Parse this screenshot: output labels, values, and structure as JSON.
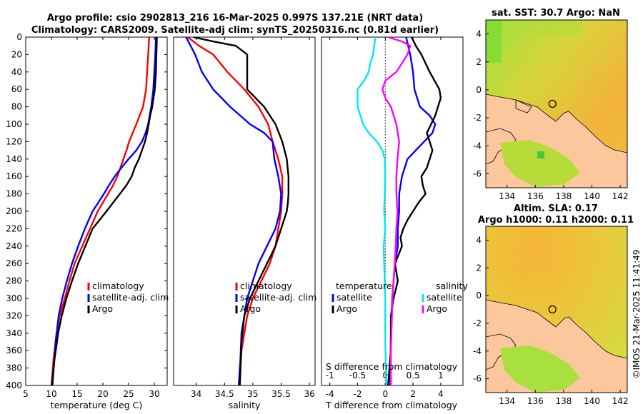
{
  "header": {
    "title_line1": "Argo profile: csio 2902813_216 16-Mar-2025 0.997S 137.21E (NRT data)",
    "title_line2": "Climatology: CARS2009. Satellite-adj clim: synTS_20250316.nc (0.81d earlier)"
  },
  "colors": {
    "climatology": "#ff0000",
    "satellite": "#0000ff",
    "argo": "#000000",
    "cyan": "#00e8f0",
    "magenta": "#ff00ff",
    "land": "#fdc79d"
  },
  "depth_ticks": [
    0,
    20,
    40,
    60,
    80,
    100,
    120,
    140,
    160,
    180,
    200,
    220,
    240,
    260,
    280,
    300,
    320,
    340,
    360,
    380,
    400
  ],
  "chart_data": [
    {
      "type": "line",
      "name": "temperature",
      "xlabel": "temperature (deg C)",
      "xlim": [
        5,
        32.5
      ],
      "xticks": [
        5,
        10,
        15,
        20,
        25,
        30
      ],
      "ylim": [
        0,
        400
      ],
      "legend": [
        "climatology",
        "satellite-adj. clim",
        "Argo"
      ],
      "series": [
        {
          "name": "climatology",
          "color": "#ff0000",
          "x": [
            29.0,
            28.8,
            28.6,
            28.4,
            27.8,
            26.5,
            25.8,
            25.1,
            24.6,
            24.0,
            23.4,
            22.8,
            22.0,
            21.0,
            20.0,
            19.0,
            17.5,
            16.0,
            14.5,
            13.5,
            12.6,
            11.6,
            11.0,
            10.4,
            10.0
          ],
          "y": [
            0,
            20,
            40,
            60,
            80,
            100,
            110,
            120,
            130,
            140,
            150,
            160,
            170,
            180,
            190,
            200,
            220,
            240,
            260,
            280,
            300,
            320,
            340,
            370,
            400
          ]
        },
        {
          "name": "satellite-adj. clim",
          "color": "#0000ff",
          "x": [
            30.3,
            30.2,
            30.0,
            29.8,
            29.4,
            28.8,
            28.3,
            27.6,
            26.5,
            25.0,
            23.6,
            22.3,
            21.2,
            20.2,
            18.0,
            16.5,
            15.2,
            14.0,
            13.0,
            12.1,
            11.4,
            10.8,
            10.2
          ],
          "y": [
            0,
            20,
            40,
            60,
            80,
            100,
            110,
            120,
            130,
            140,
            150,
            160,
            170,
            180,
            200,
            220,
            240,
            260,
            280,
            300,
            320,
            350,
            400
          ]
        },
        {
          "name": "Argo",
          "color": "#000000",
          "x": [
            30.5,
            30.4,
            30.3,
            30.1,
            29.6,
            29.2,
            28.9,
            28.6,
            28.2,
            27.6,
            27.0,
            26.2,
            25.6,
            24.6,
            23.3,
            22.0,
            20.7,
            18.0,
            16.6,
            15.2,
            14.0,
            12.9,
            12.0,
            11.3,
            10.6,
            10.1
          ],
          "y": [
            0,
            20,
            40,
            60,
            80,
            90,
            100,
            110,
            120,
            130,
            140,
            150,
            160,
            170,
            180,
            190,
            200,
            220,
            240,
            260,
            280,
            300,
            320,
            340,
            370,
            400
          ]
        }
      ]
    },
    {
      "type": "line",
      "name": "salinity",
      "xlabel": "salinity",
      "xlim": [
        33.6,
        36.1
      ],
      "xticks": [
        34,
        34.5,
        35,
        35.5,
        36
      ],
      "ylim": [
        0,
        400
      ],
      "legend": [
        "climatology",
        "satellite-adj. clim",
        "Argo"
      ],
      "series": [
        {
          "name": "climatology",
          "color": "#ff0000",
          "x": [
            33.85,
            34.05,
            34.3,
            34.55,
            34.85,
            35.1,
            35.27,
            35.35,
            35.45,
            35.52,
            35.52,
            35.5,
            35.45,
            35.4,
            35.3,
            35.15,
            35.0,
            34.9,
            34.85,
            34.8,
            34.78,
            34.77
          ],
          "y": [
            0,
            10,
            20,
            40,
            60,
            80,
            100,
            120,
            140,
            160,
            180,
            200,
            220,
            240,
            260,
            280,
            300,
            320,
            340,
            360,
            380,
            400
          ]
        },
        {
          "name": "satellite-adj. clim",
          "color": "#0000ff",
          "x": [
            33.82,
            33.9,
            33.98,
            34.1,
            34.3,
            34.6,
            34.95,
            35.2,
            35.35,
            35.38,
            35.45,
            35.5,
            35.48,
            35.4,
            35.25,
            35.1,
            35.0,
            34.9,
            34.85,
            34.8,
            34.78,
            34.75
          ],
          "y": [
            0,
            10,
            20,
            40,
            60,
            80,
            100,
            110,
            120,
            140,
            160,
            180,
            200,
            220,
            240,
            260,
            280,
            300,
            320,
            340,
            370,
            400
          ]
        },
        {
          "name": "Argo",
          "color": "#000000",
          "x": [
            33.95,
            34.3,
            34.7,
            34.9,
            34.9,
            34.9,
            35.2,
            35.4,
            35.52,
            35.6,
            35.63,
            35.63,
            35.62,
            35.6,
            35.5,
            35.4,
            35.25,
            35.1,
            34.95,
            34.85,
            34.8,
            34.77
          ],
          "y": [
            0,
            5,
            10,
            20,
            40,
            60,
            80,
            100,
            120,
            140,
            160,
            180,
            190,
            200,
            220,
            240,
            260,
            280,
            300,
            320,
            350,
            400
          ]
        }
      ]
    },
    {
      "type": "line",
      "name": "differences",
      "xlabel": "T difference from climatology",
      "xlabel_top": "S difference from climatology",
      "xlim": [
        -4.6,
        5.6
      ],
      "xticks": [
        -4,
        -2,
        0,
        2,
        4
      ],
      "x2lim": [
        -1.15,
        1.4
      ],
      "x2ticks": [
        -1,
        -0.5,
        0,
        0.5,
        1
      ],
      "x2ticklabels": [
        "-1",
        "-0.5",
        "0",
        "0.5",
        "1"
      ],
      "ylim": [
        0,
        400
      ],
      "legend_left_title": "temperature",
      "legend_right_title": "salinity",
      "legend_left": [
        "satellite",
        "Argo"
      ],
      "legend_right": [
        "satellite",
        "Argo"
      ],
      "series": [
        {
          "name": "temperature satellite",
          "color": "#0000ff",
          "axis": "T",
          "x": [
            1.5,
            1.8,
            2.0,
            2.1,
            2.5,
            3.2,
            3.6,
            3.4,
            2.8,
            2.2,
            1.6,
            1.4,
            1.2,
            1.0,
            1.0,
            0.9,
            0.9,
            0.7,
            0.6,
            0.5,
            0.4,
            0.35
          ],
          "y": [
            0,
            20,
            40,
            60,
            80,
            90,
            100,
            110,
            120,
            130,
            140,
            150,
            160,
            180,
            200,
            220,
            240,
            260,
            280,
            300,
            340,
            400
          ]
        },
        {
          "name": "temperature Argo",
          "color": "#000000",
          "axis": "T",
          "x": [
            1.9,
            2.2,
            2.6,
            3.2,
            3.9,
            4.0,
            3.6,
            3.3,
            3.0,
            3.4,
            3.0,
            2.6,
            2.7,
            2.9,
            2.4,
            2.0,
            1.6,
            1.3,
            1.1,
            1.2,
            0.7,
            0.9,
            0.6,
            0.4,
            0.4,
            0.2
          ],
          "y": [
            0,
            10,
            20,
            40,
            60,
            70,
            90,
            100,
            110,
            130,
            150,
            160,
            170,
            180,
            190,
            200,
            210,
            220,
            230,
            240,
            260,
            280,
            300,
            320,
            360,
            400
          ]
        },
        {
          "name": "salinity satellite",
          "color": "#00e8f0",
          "axis": "S",
          "x": [
            -0.18,
            -0.2,
            -0.22,
            -0.27,
            -0.3,
            -0.38,
            -0.5,
            -0.5,
            -0.4,
            -0.3,
            -0.15,
            -0.05,
            -0.01,
            0.0,
            -0.01,
            -0.02,
            0.0,
            -0.03,
            -0.02,
            0.0,
            0.0,
            0.02
          ],
          "y": [
            0,
            10,
            20,
            30,
            40,
            50,
            60,
            80,
            100,
            110,
            120,
            130,
            140,
            160,
            180,
            200,
            220,
            240,
            260,
            300,
            350,
            400
          ]
        },
        {
          "name": "salinity Argo",
          "color": "#ff00ff",
          "axis": "S",
          "x": [
            0.05,
            0.3,
            0.45,
            0.4,
            0.3,
            0.2,
            0.0,
            -0.05,
            0.0,
            0.1,
            0.2,
            0.25,
            0.22,
            0.2,
            0.2,
            0.22,
            0.2,
            0.19,
            0.17,
            0.15,
            0.13,
            0.12,
            0.1,
            0.1
          ],
          "y": [
            0,
            5,
            10,
            20,
            30,
            40,
            50,
            60,
            70,
            80,
            100,
            120,
            140,
            160,
            180,
            200,
            220,
            240,
            260,
            280,
            300,
            320,
            360,
            400
          ]
        }
      ]
    }
  ],
  "maps": {
    "sst": {
      "title": "sat. SST: 30.7 Argo: NaN",
      "xlim": [
        132.5,
        142.5
      ],
      "ylim": [
        -7,
        5
      ],
      "xticks": [
        134,
        136,
        138,
        140,
        142
      ],
      "yticks": [
        -6,
        -4,
        -2,
        0,
        2,
        4
      ],
      "float_lon": 137.21,
      "float_lat": -0.997
    },
    "sla": {
      "title_line1": "Altim. SLA: 0.17",
      "title_line2": "Argo h1000: 0.11 h2000: 0.11",
      "xlim": [
        132.5,
        142.5
      ],
      "ylim": [
        -7,
        5
      ],
      "xticks": [
        134,
        136,
        138,
        140,
        142
      ],
      "yticks": [
        -6,
        -4,
        -2,
        0,
        2,
        4
      ],
      "float_lon": 137.21,
      "float_lat": -0.997
    }
  },
  "stamp": "©IMOS 21-Mar-2025 11:41:49"
}
